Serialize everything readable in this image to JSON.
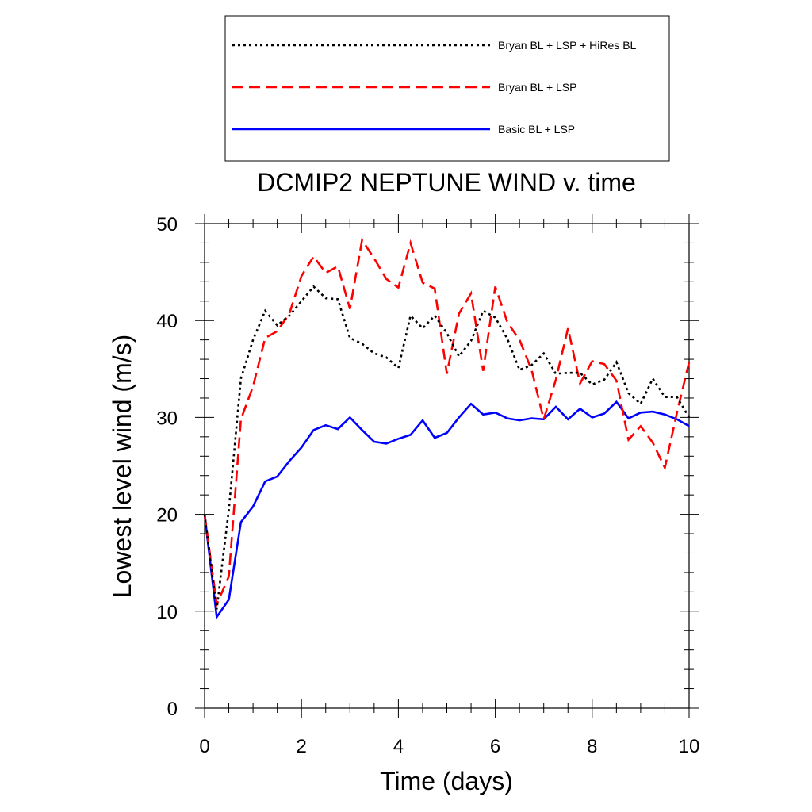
{
  "chart_data": {
    "type": "line",
    "title": "DCMIP2 NEPTUNE WIND v. time",
    "xlabel": "Time (days)",
    "ylabel": "Lowest level wind (m/s)",
    "xlim": [
      0,
      10
    ],
    "ylim": [
      0,
      50
    ],
    "x_ticks": [
      0,
      2,
      4,
      6,
      8,
      10
    ],
    "y_ticks": [
      0,
      10,
      20,
      30,
      40,
      50
    ],
    "x_tick_labels": [
      "0",
      "2",
      "4",
      "6",
      "8",
      "10"
    ],
    "y_tick_labels": [
      "0",
      "10",
      "20",
      "30",
      "40",
      "50"
    ],
    "grid": false,
    "legend_position": "top, above title, boxed",
    "x": [
      0,
      0.25,
      0.5,
      0.75,
      1,
      1.25,
      1.5,
      1.75,
      2,
      2.25,
      2.5,
      2.75,
      3,
      3.25,
      3.5,
      3.75,
      4,
      4.25,
      4.5,
      4.75,
      5,
      5.25,
      5.5,
      5.75,
      6,
      6.25,
      6.5,
      6.75,
      7,
      7.25,
      7.5,
      7.75,
      8,
      8.25,
      8.5,
      8.75,
      9,
      9.25,
      9.5,
      9.75,
      10
    ],
    "series": [
      {
        "name": "Bryan BL + LSP + HiRes BL",
        "color": "#000000",
        "style": "dotted",
        "values": [
          20,
          10.2,
          20.5,
          34,
          38,
          41,
          39.5,
          40.5,
          42,
          43.5,
          42.3,
          42.2,
          38.2,
          37.6,
          36.6,
          36.2,
          35.1,
          40.5,
          39.2,
          40.5,
          38.7,
          36.3,
          37.9,
          41,
          40.3,
          38.1,
          34.9,
          35.4,
          36.6,
          34.5,
          34.6,
          34.6,
          33.4,
          33.9,
          35.7,
          32.5,
          31.4,
          34,
          32.1,
          32.1,
          30
        ]
      },
      {
        "name": "Bryan BL + LSP",
        "color": "#ff0000",
        "style": "dashed",
        "values": [
          20,
          10.7,
          13.6,
          29.8,
          33.2,
          38.2,
          38.9,
          40.7,
          44.6,
          46.6,
          44.9,
          45.6,
          41.2,
          48.3,
          46.4,
          44.3,
          43.4,
          48,
          43.9,
          43.3,
          34.5,
          40.7,
          42.8,
          34.8,
          43.5,
          39.8,
          38,
          34.9,
          29.8,
          33.9,
          39.2,
          33.5,
          35.8,
          35.5,
          33.8,
          27.7,
          29.1,
          27.4,
          24.8,
          30.5,
          35.7
        ]
      },
      {
        "name": "Basic BL + LSP",
        "color": "#0000ff",
        "style": "solid",
        "values": [
          20,
          9.4,
          11.2,
          19.2,
          20.8,
          23.4,
          23.9,
          25.5,
          26.9,
          28.7,
          29.2,
          28.8,
          30,
          28.7,
          27.5,
          27.3,
          27.8,
          28.2,
          29.7,
          27.9,
          28.4,
          30,
          31.4,
          30.3,
          30.5,
          29.9,
          29.7,
          29.9,
          29.8,
          31.1,
          29.8,
          30.9,
          30,
          30.4,
          31.6,
          29.9,
          30.5,
          30.6,
          30.3,
          29.8,
          29.1
        ]
      }
    ]
  }
}
